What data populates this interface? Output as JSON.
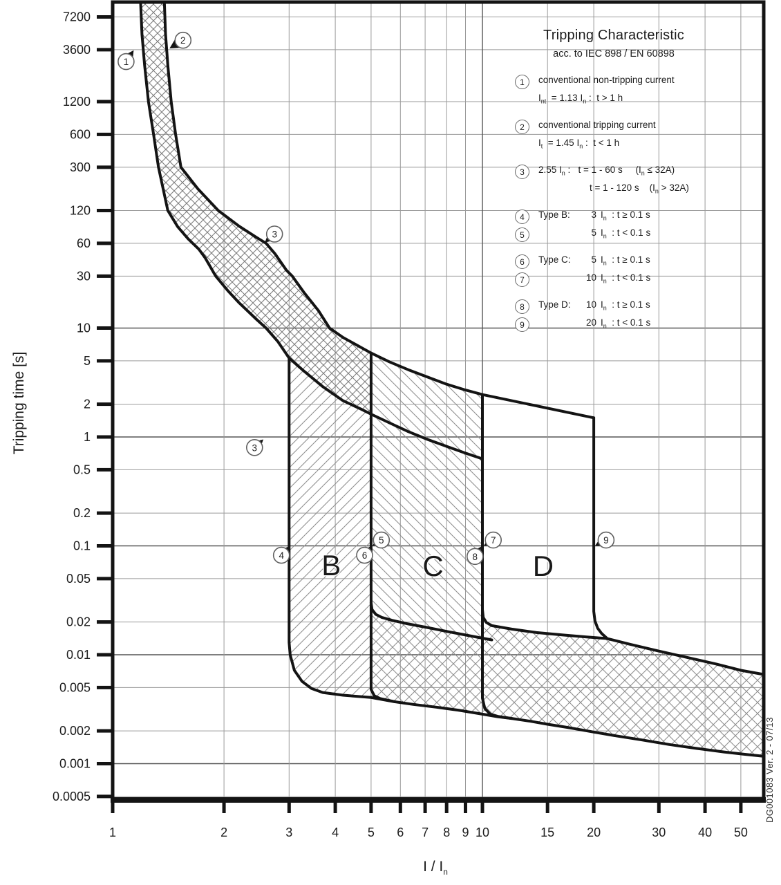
{
  "legend": {
    "title": "Tripping Characteristic",
    "subtitle": "acc. to IEC 898 / EN 60898",
    "rows": [
      {
        "badge": "1",
        "text": "conventional non-tripping current",
        "gap": true
      },
      {
        "text": "I~nt~  = 1.13 I~n~ :  t > 1 h"
      },
      {
        "badge": "2",
        "text": "conventional tripping current",
        "gap": true
      },
      {
        "text": "I~t~  = 1.45 I~n~ :  t < 1 h"
      },
      {
        "badge": "3",
        "text": "2.55 I~n~ :   t = 1 - 60 s     (I~n~ ≤ 32A)",
        "gap": true
      },
      {
        "text": "t = 1 - 120 s    (I~n~ > 32A)",
        "ind": 74
      },
      {
        "badge": "4",
        "head": "Type B:",
        "num": "3",
        "rest": "I~n~  : t ≥ 0.1 s",
        "gap": true
      },
      {
        "badge": "5",
        "head": "",
        "num": "5",
        "rest": "I~n~  : t < 0.1 s"
      },
      {
        "badge": "6",
        "head": "Type C:",
        "num": "5",
        "rest": "I~n~  : t ≥ 0.1 s",
        "gap": true
      },
      {
        "badge": "7",
        "head": "",
        "num": "10",
        "rest": "I~n~  : t < 0.1 s"
      },
      {
        "badge": "8",
        "head": "Type D:",
        "num": "10",
        "rest": "I~n~  : t ≥ 0.1 s",
        "gap": true
      },
      {
        "badge": "9",
        "head": "",
        "num": "20",
        "rest": "I~n~  : t < 0.1 s"
      }
    ]
  },
  "watermark": "DG001083 Ver. 2 - 07/13",
  "chart_data": {
    "type": "line",
    "scale": "log-log",
    "xlabel": "I / I~n~",
    "ylabel": "Tripping time [s]",
    "x_ticks": [
      "1",
      "2",
      "3",
      "4",
      "5",
      "6",
      "7",
      "8",
      "9",
      "10",
      "15",
      "20",
      "30",
      "40",
      "50"
    ],
    "y_ticks": [
      "7200",
      "3600",
      "1200",
      "600",
      "300",
      "120",
      "60",
      "30",
      "10",
      "5",
      "2",
      "1",
      "0.5",
      "0.2",
      "0.1",
      "0.05",
      "0.02",
      "0.01",
      "0.005",
      "0.002",
      "0.001",
      "0.0005"
    ],
    "x_range": [
      1,
      57.5
    ],
    "y_range": [
      0.00044,
      9880
    ],
    "grid": true,
    "region_labels": [
      {
        "text": "B",
        "I": 3.9,
        "t": 0.066
      },
      {
        "text": "C",
        "I": 7.35,
        "t": 0.065
      },
      {
        "text": "D",
        "I": 14.6,
        "t": 0.065
      }
    ],
    "markers": [
      {
        "n": "1",
        "c": [
          1.087,
          2800
        ],
        "tip": [
          1.14,
          3550
        ]
      },
      {
        "n": "2",
        "c": [
          1.55,
          4400
        ],
        "tip": [
          1.425,
          3700
        ]
      },
      {
        "n": "3",
        "c": [
          2.74,
          73
        ],
        "tip": [
          2.58,
          61
        ]
      },
      {
        "n": "3",
        "c": [
          2.42,
          0.8
        ],
        "tip": [
          2.555,
          0.95
        ]
      },
      {
        "n": "4",
        "c": [
          2.86,
          0.082
        ],
        "tip": [
          2.99,
          0.0985
        ]
      },
      {
        "n": "5",
        "c": [
          5.33,
          0.113
        ],
        "tip": [
          5.04,
          0.1
        ]
      },
      {
        "n": "6",
        "c": [
          4.8,
          0.082
        ],
        "tip": [
          4.97,
          0.0985
        ]
      },
      {
        "n": "7",
        "c": [
          10.7,
          0.113
        ],
        "tip": [
          10.08,
          0.1
        ]
      },
      {
        "n": "8",
        "c": [
          9.55,
          0.08
        ],
        "tip": [
          9.92,
          0.0985
        ]
      },
      {
        "n": "9",
        "c": [
          21.6,
          0.113
        ],
        "tip": [
          20.15,
          0.1
        ]
      }
    ],
    "curves": {
      "lower": [
        [
          1.19,
          9880
        ],
        [
          1.2,
          5000
        ],
        [
          1.22,
          2600
        ],
        [
          1.25,
          1200
        ],
        [
          1.29,
          600
        ],
        [
          1.33,
          300
        ],
        [
          1.41,
          120
        ],
        [
          1.5,
          85
        ],
        [
          1.6,
          66
        ],
        [
          1.71,
          53
        ],
        [
          1.78,
          44
        ],
        [
          1.9,
          30
        ],
        [
          2.05,
          22
        ],
        [
          2.2,
          17
        ],
        [
          2.45,
          12
        ],
        [
          2.6,
          10
        ],
        [
          2.8,
          7.5
        ],
        [
          3.0,
          5.3
        ],
        [
          3.3,
          4.0
        ],
        [
          3.7,
          2.9
        ],
        [
          4.2,
          2.15
        ],
        [
          4.7,
          1.8
        ],
        [
          5.0,
          1.62
        ],
        [
          5.6,
          1.35
        ],
        [
          6.3,
          1.12
        ],
        [
          7.1,
          0.95
        ],
        [
          8.0,
          0.82
        ],
        [
          9.0,
          0.71
        ],
        [
          10.0,
          0.63
        ]
      ],
      "upper": [
        [
          1.38,
          9880
        ],
        [
          1.39,
          5000
        ],
        [
          1.41,
          2600
        ],
        [
          1.44,
          1200
        ],
        [
          1.48,
          600
        ],
        [
          1.53,
          300
        ],
        [
          1.7,
          190
        ],
        [
          1.93,
          120
        ],
        [
          2.2,
          86
        ],
        [
          2.45,
          68
        ],
        [
          2.6,
          60
        ],
        [
          2.75,
          48
        ],
        [
          2.95,
          34
        ],
        [
          3.06,
          30
        ],
        [
          3.3,
          21
        ],
        [
          3.6,
          14.5
        ],
        [
          3.86,
          10
        ],
        [
          4.2,
          8.2
        ],
        [
          4.6,
          6.9
        ],
        [
          5.0,
          5.9
        ],
        [
          5.6,
          4.9
        ],
        [
          6.3,
          4.15
        ],
        [
          7.1,
          3.55
        ],
        [
          8.0,
          3.05
        ],
        [
          9.0,
          2.7
        ],
        [
          10.0,
          2.45
        ]
      ],
      "d_top": [
        [
          10,
          2.45
        ],
        [
          20,
          1.5
        ]
      ],
      "b3_vert": [
        [
          3,
          5.3
        ],
        [
          3,
          0.013
        ]
      ],
      "b3_corner": [
        [
          3,
          0.013
        ],
        [
          3.02,
          0.01
        ],
        [
          3.1,
          0.0072
        ],
        [
          3.25,
          0.0057
        ],
        [
          3.45,
          0.0049
        ],
        [
          3.7,
          0.0045
        ]
      ],
      "b3_bottom": [
        [
          3.7,
          0.0045
        ],
        [
          4.2,
          0.00425
        ],
        [
          5.0,
          0.00405
        ],
        [
          5.8,
          0.0037
        ],
        [
          6.5,
          0.0035
        ],
        [
          7.5,
          0.0033
        ],
        [
          8.6,
          0.0031
        ],
        [
          10,
          0.00285
        ],
        [
          11,
          0.0027
        ],
        [
          12,
          0.0026
        ],
        [
          13.5,
          0.00245
        ],
        [
          15,
          0.0023
        ],
        [
          17,
          0.00215
        ],
        [
          20,
          0.00195
        ],
        [
          23,
          0.0018
        ],
        [
          27,
          0.00165
        ],
        [
          32,
          0.0015
        ],
        [
          38,
          0.00138
        ],
        [
          45,
          0.00128
        ],
        [
          51,
          0.00122
        ],
        [
          57.5,
          0.00117
        ]
      ],
      "c5_vert": [
        [
          5,
          5.9
        ],
        [
          5,
          0.0048
        ]
      ],
      "c5_lowcorner": [
        [
          5,
          0.0048
        ],
        [
          5.1,
          0.0042
        ],
        [
          5.3,
          0.00395
        ],
        [
          5.8,
          0.0037
        ]
      ],
      "c5_branch": [
        [
          5,
          0.03
        ],
        [
          5.03,
          0.026
        ],
        [
          5.15,
          0.0235
        ],
        [
          5.35,
          0.022
        ],
        [
          5.7,
          0.0207
        ],
        [
          6.3,
          0.0192
        ],
        [
          7.1,
          0.0178
        ],
        [
          8.0,
          0.0164
        ],
        [
          9.0,
          0.0152
        ],
        [
          10.0,
          0.0142
        ],
        [
          10.6,
          0.0137
        ]
      ],
      "d10_vert": [
        [
          10,
          2.45
        ],
        [
          10,
          0.004
        ]
      ],
      "d10_lowcorner": [
        [
          10,
          0.004
        ],
        [
          10.15,
          0.0032
        ],
        [
          10.5,
          0.00285
        ],
        [
          11,
          0.00272
        ],
        [
          12,
          0.0026
        ]
      ],
      "d10_branch": [
        [
          10,
          0.026
        ],
        [
          10.05,
          0.022
        ],
        [
          10.25,
          0.0198
        ],
        [
          10.6,
          0.0185
        ],
        [
          12,
          0.0172
        ],
        [
          14,
          0.016
        ],
        [
          16.5,
          0.0152
        ],
        [
          19,
          0.0146
        ],
        [
          21.7,
          0.0141
        ],
        [
          25,
          0.0125
        ],
        [
          30,
          0.0108
        ],
        [
          36,
          0.0094
        ],
        [
          43,
          0.0082
        ],
        [
          50,
          0.0072
        ],
        [
          57.5,
          0.0066
        ]
      ],
      "d20": [
        [
          20,
          1.5
        ],
        [
          20,
          0.025
        ],
        [
          20.15,
          0.0205
        ],
        [
          20.5,
          0.0175
        ],
        [
          21,
          0.0157
        ],
        [
          21.7,
          0.0142
        ]
      ]
    },
    "colors": {
      "ink": "#141414",
      "grid": "#9a9a9a",
      "grid_decade": "#555555",
      "hatch": "#8f8f8f",
      "label": "#1c1c1c"
    }
  }
}
